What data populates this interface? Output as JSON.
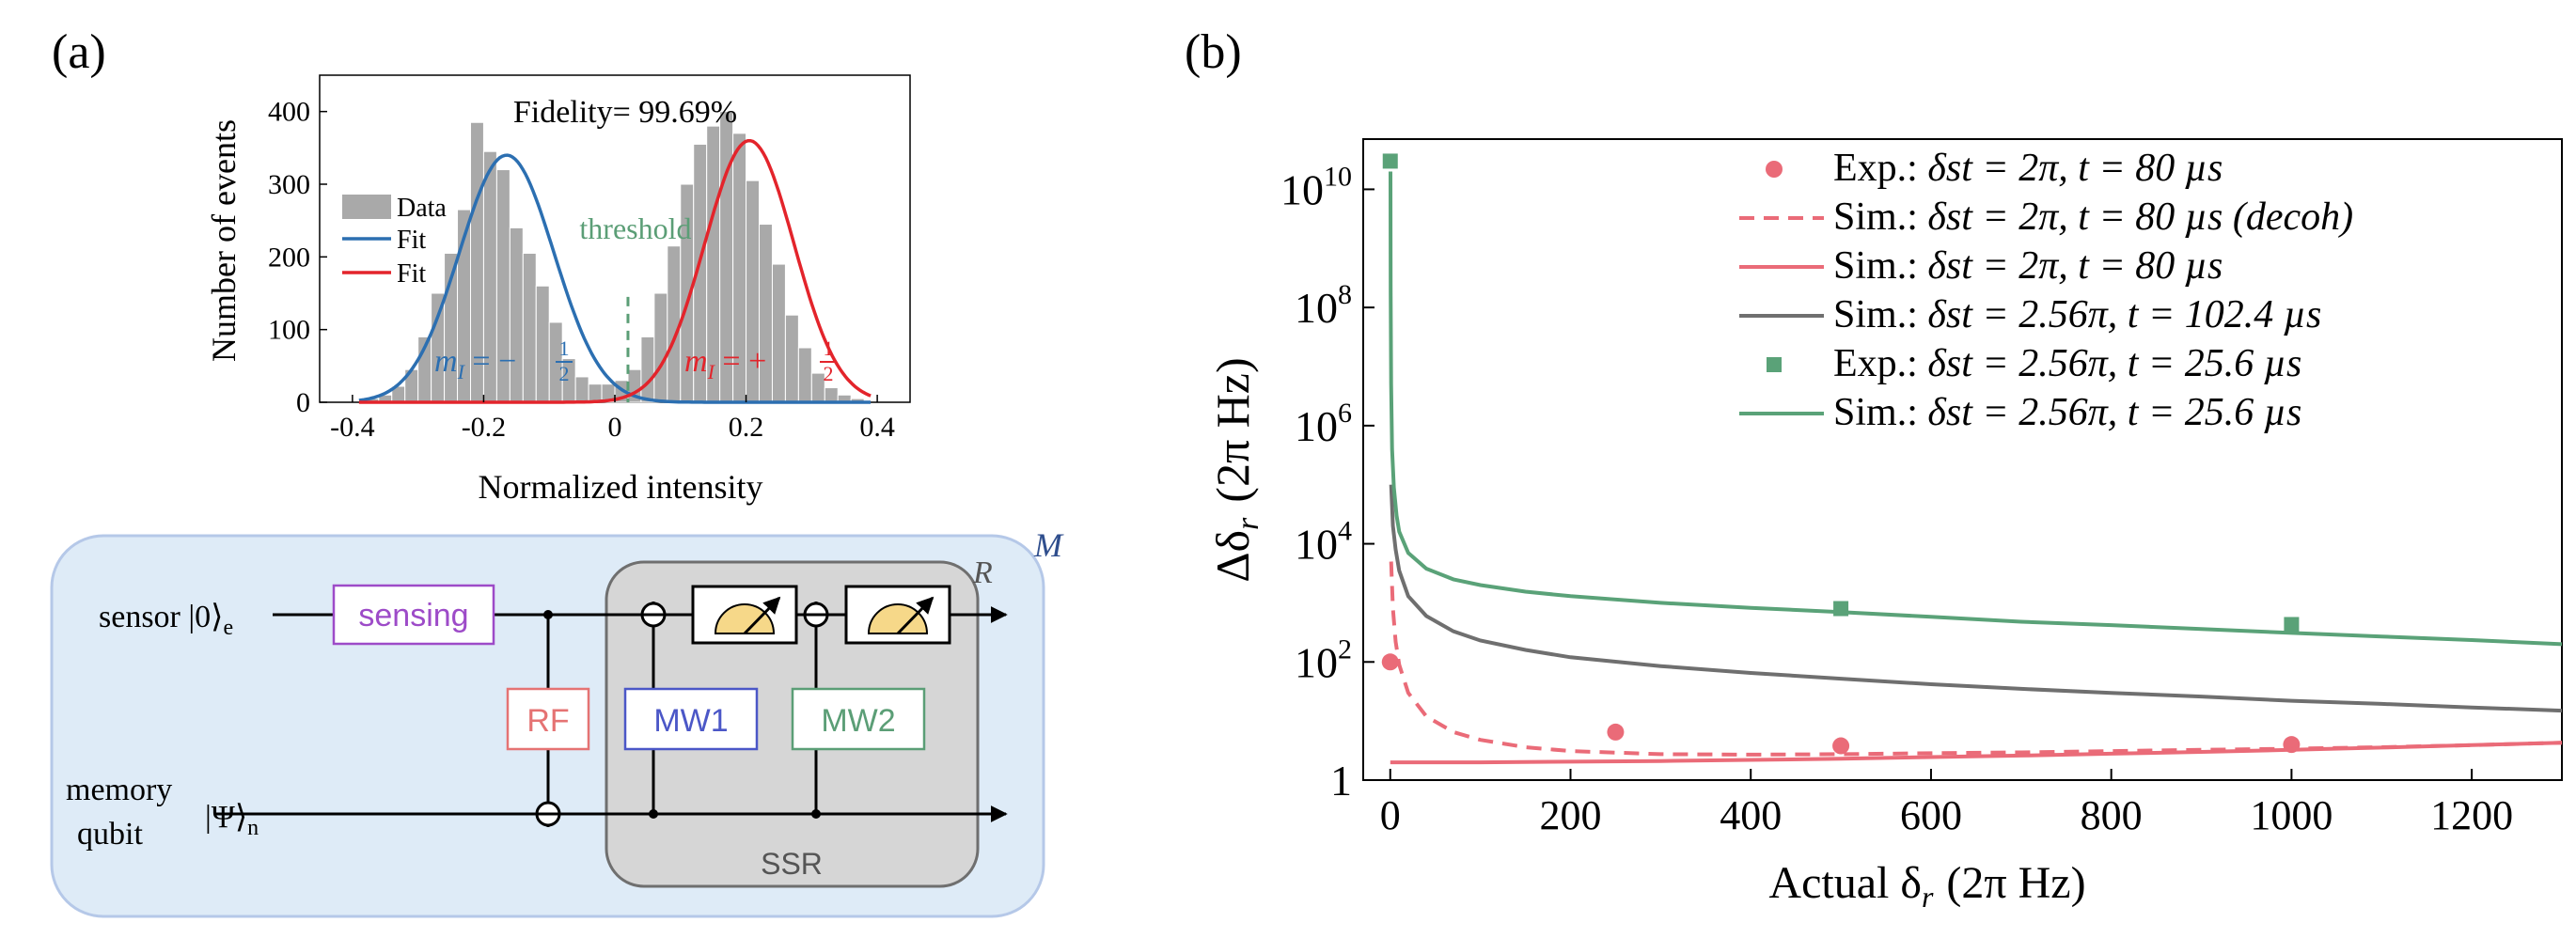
{
  "panel_labels": {
    "a": "(a)",
    "b": "(b)"
  },
  "colors": {
    "blue": "#2c6fb1",
    "red": "#e3242b",
    "green_text": "#5b9e76",
    "pink": "#ea6b78",
    "gray_line": "#6f6f6f",
    "green": "#5aa278",
    "hist_fill": "#a9a9a9",
    "purple": "#9d4bc8",
    "rf": "#e57373",
    "mw1": "#4b57c7",
    "mw2": "#5b9e76",
    "panel_bg": "#deebf7",
    "ssr_bg": "#d6d6d6",
    "meter": "#f6d889"
  },
  "chart_data": [
    {
      "id": "histogram",
      "type": "bar",
      "title": "Fidelity= 99.69%",
      "xlabel": "Normalized intensity",
      "ylabel": "Number of events",
      "xlim": [
        -0.45,
        0.45
      ],
      "ylim": [
        0,
        450
      ],
      "xticks": [
        -0.4,
        -0.2,
        0,
        0.2,
        0.4
      ],
      "xtick_labels": [
        "-0.4",
        "-0.2",
        "0",
        "0.2",
        "0.4"
      ],
      "yticks": [
        0,
        100,
        200,
        300,
        400
      ],
      "ytick_labels": [
        "0",
        "100",
        "200",
        "300",
        "400"
      ],
      "bin_width": 0.02,
      "bin_centers": [
        -0.37,
        -0.35,
        -0.33,
        -0.31,
        -0.29,
        -0.27,
        -0.25,
        -0.23,
        -0.21,
        -0.19,
        -0.17,
        -0.15,
        -0.13,
        -0.11,
        -0.09,
        -0.07,
        -0.05,
        -0.03,
        -0.01,
        0.01,
        0.03,
        0.05,
        0.07,
        0.09,
        0.11,
        0.13,
        0.15,
        0.17,
        0.19,
        0.21,
        0.23,
        0.25,
        0.27,
        0.29,
        0.31,
        0.33,
        0.35,
        0.37
      ],
      "counts": [
        5,
        10,
        22,
        45,
        90,
        150,
        205,
        265,
        385,
        345,
        320,
        240,
        205,
        160,
        110,
        60,
        35,
        25,
        25,
        30,
        45,
        90,
        150,
        215,
        300,
        355,
        380,
        400,
        370,
        305,
        245,
        190,
        120,
        75,
        40,
        20,
        10,
        5
      ],
      "fits": [
        {
          "name": "Fit",
          "color": "blue",
          "amplitude": 340,
          "center": -0.165,
          "sigma": 0.072
        },
        {
          "name": "Fit",
          "color": "red",
          "amplitude": 360,
          "center": 0.205,
          "sigma": 0.068
        }
      ],
      "threshold": {
        "x": 0.02,
        "label": "threshold"
      },
      "legend": {
        "position": "left",
        "entries": [
          "Data",
          "Fit",
          "Fit"
        ]
      },
      "annotations": {
        "left_state": "m",
        "left_sub": "I",
        "left_eq": " = −",
        "left_num": "1",
        "left_den": "2",
        "right_state": "m",
        "right_sub": "I",
        "right_eq": " = +",
        "right_num": "1",
        "right_den": "2"
      }
    },
    {
      "id": "estimation",
      "type": "line",
      "xlabel": "Actual δ",
      "xlabel_sub": "r",
      "xlabel_unit": "(2π Hz)",
      "ylabel": "Δδ",
      "ylabel_sub": "r",
      "ylabel_unit": "(2π Hz)",
      "xlim": [
        -30,
        1300
      ],
      "ylim_log10": [
        0,
        10.85
      ],
      "xticks": [
        0,
        200,
        400,
        600,
        800,
        1000,
        1200
      ],
      "xtick_labels": [
        "0",
        "200",
        "400",
        "600",
        "800",
        "1000",
        "1200"
      ],
      "yticks_log10": [
        0,
        2,
        4,
        6,
        8,
        10
      ],
      "ytick_labels": [
        {
          "base": "1",
          "exp": ""
        },
        {
          "base": "10",
          "exp": "2"
        },
        {
          "base": "10",
          "exp": "4"
        },
        {
          "base": "10",
          "exp": "6"
        },
        {
          "base": "10",
          "exp": "8"
        },
        {
          "base": "10",
          "exp": "10"
        }
      ],
      "series": [
        {
          "name": "Exp.: δst = 2π, t = 80 µs",
          "label_prefix": "Exp.:",
          "label_math": "δst = 2π, t = 80 µs",
          "kind": "marker_circle",
          "color": "pink",
          "x": [
            0,
            250,
            500,
            1000
          ],
          "y": [
            100,
            6.5,
            3.8,
            4.0
          ]
        },
        {
          "name": "Sim.: δst = 2π, t = 80 µs (decoh)",
          "label_prefix": "Sim.:",
          "label_math": "δst = 2π, t = 80 µs (decoh)",
          "kind": "dashed",
          "color": "pink",
          "x": [
            1,
            3,
            6,
            10,
            20,
            40,
            70,
            100,
            150,
            200,
            300,
            400,
            500,
            600,
            700,
            800,
            900,
            1000,
            1100,
            1200,
            1300
          ],
          "y": [
            5000,
            800,
            220,
            90,
            30,
            12,
            6.5,
            4.8,
            3.6,
            3.1,
            2.75,
            2.7,
            2.75,
            2.85,
            2.95,
            3.1,
            3.25,
            3.4,
            3.6,
            3.9,
            4.3
          ]
        },
        {
          "name": "Sim.: δst = 2π, t = 80 µs",
          "label_prefix": "Sim.:",
          "label_math": "δst = 2π, t = 80 µs",
          "kind": "solid",
          "color": "pink",
          "x": [
            0,
            100,
            200,
            300,
            400,
            500,
            600,
            700,
            800,
            900,
            1000,
            1100,
            1200,
            1300
          ],
          "y": [
            2.0,
            2.0,
            2.05,
            2.1,
            2.2,
            2.3,
            2.45,
            2.6,
            2.8,
            3.0,
            3.25,
            3.55,
            3.9,
            4.3
          ]
        },
        {
          "name": "Sim.: δst = 2.56π, t = 102.4 µs",
          "label_prefix": "Sim.:",
          "label_math": "δst = 2.56π, t = 102.4 µs",
          "kind": "solid",
          "color": "gray_line",
          "x": [
            1,
            3,
            6,
            10,
            20,
            40,
            70,
            100,
            150,
            200,
            300,
            400,
            500,
            600,
            700,
            800,
            900,
            1000,
            1100,
            1200,
            1300
          ],
          "y": [
            100000,
            20000,
            8000,
            3500,
            1300,
            600,
            330,
            230,
            160,
            120,
            85,
            65,
            52,
            42,
            35,
            30,
            26,
            22,
            19.5,
            17,
            15
          ]
        },
        {
          "name": "Exp.: δst = 2.56π, t = 25.6 µs",
          "label_prefix": "Exp.:",
          "label_math": "δst = 2.56π, t = 25.6 µs",
          "kind": "marker_square",
          "color": "green",
          "x": [
            0,
            500,
            1000
          ],
          "y": [
            30000000000,
            800,
            430
          ]
        },
        {
          "name": "Sim.: δst = 2.56π, t = 25.6 µs",
          "label_prefix": "Sim.:",
          "label_math": "δst = 2.56π, t = 25.6 µs",
          "kind": "solid",
          "color": "green",
          "x": [
            0.2,
            0.5,
            1,
            2,
            4,
            7,
            10,
            20,
            40,
            70,
            100,
            150,
            200,
            300,
            400,
            500,
            600,
            700,
            800,
            900,
            1000,
            1100,
            1200,
            1300
          ],
          "y": [
            20000000000,
            200000000,
            5000000,
            400000,
            90000,
            30000,
            16000,
            7000,
            3800,
            2500,
            2000,
            1550,
            1300,
            1000,
            820,
            700,
            580,
            480,
            420,
            360,
            310,
            270,
            235,
            200
          ]
        }
      ],
      "legend": {
        "position": "top-right"
      }
    }
  ],
  "circuit": {
    "region_label": "M",
    "ssr_region_label": "R",
    "ssr_label": "SSR",
    "sensor_label": "sensor |0⟩",
    "sensor_sub": "e",
    "memory_label_1": "memory",
    "memory_label_2": "qubit",
    "memory_ket": "|Ψ⟩",
    "memory_sub": "n",
    "gates": {
      "sensing": "sensing",
      "rf": "RF",
      "mw1": "MW1",
      "mw2": "MW2"
    }
  }
}
